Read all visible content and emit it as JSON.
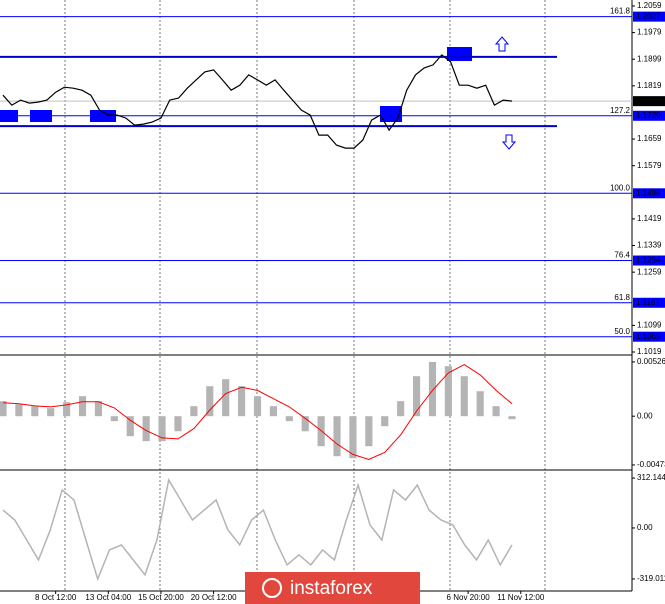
{
  "chart_data": [
    {
      "type": "line",
      "color": "#000000",
      "values": [
        1.1791,
        1.1761,
        1.1776,
        1.1767,
        1.177,
        1.1776,
        1.18,
        1.1815,
        1.1812,
        1.1806,
        1.1791,
        1.1746,
        1.1731,
        1.1731,
        1.1722,
        1.1701,
        1.1704,
        1.171,
        1.1722,
        1.1776,
        1.1782,
        1.1812,
        1.1837,
        1.1861,
        1.1867,
        1.1837,
        1.1806,
        1.1821,
        1.1852,
        1.1837,
        1.1821,
        1.1837,
        1.1806,
        1.1776,
        1.1746,
        1.1731,
        1.1671,
        1.1671,
        1.1641,
        1.1632,
        1.1632,
        1.1656,
        1.1716,
        1.1731,
        1.1686,
        1.1722,
        1.1806,
        1.1852,
        1.1873,
        1.1882,
        1.1912,
        1.1891,
        1.1821,
        1.1821,
        1.1812,
        1.1821,
        1.1761,
        1.1776,
        1.1773
      ],
      "ylim": [
        1.101,
        1.2077
      ],
      "yticks": [
        1.2059,
        1.1979,
        1.1899,
        1.1819,
        1.1659,
        1.1579,
        1.1419,
        1.1339,
        1.1259,
        1.1099,
        1.1019
      ],
      "xticks": [
        {
          "value": 6,
          "label": "8 Oct 12:00"
        },
        {
          "value": 12,
          "label": "13 Oct 04:00"
        },
        {
          "value": 18,
          "label": "15 Oct 20:00"
        },
        {
          "value": 24,
          "label": "20 Oct 12:00"
        },
        {
          "value": 53,
          "label": "6 Nov 20:00"
        },
        {
          "value": 59,
          "label": "11 Nov 12:00"
        }
      ],
      "levels": [
        {
          "name": "161.8",
          "value": 1.2027
        },
        {
          "name": "127.2",
          "value": 1.1729
        },
        {
          "name": "100.0",
          "value": 1.1496
        },
        {
          "name": "76.4",
          "value": 1.1294
        },
        {
          "name": "61.8",
          "value": 1.1167
        },
        {
          "name": "50.0",
          "value": 1.1065
        }
      ],
      "zones": [
        1.1906,
        1.1698
      ],
      "current_price": 1.1773
    },
    {
      "type": "macd",
      "color": "#b4b4b4",
      "signal_color": "#ff0000",
      "values": [
        0.00146,
        0.00116,
        0.00097,
        0.00078,
        0.00136,
        0.00194,
        0.00146,
        -0.00048,
        -0.00194,
        -0.00242,
        -0.00242,
        -0.00146,
        0.00097,
        0.00291,
        0.00359,
        0.00291,
        0.00194,
        0.00097,
        -0.00048,
        -0.00146,
        -0.00291,
        -0.00388,
        -0.00407,
        -0.00291,
        -0.00097,
        0.00146,
        0.00388,
        0.00526,
        0.00485,
        0.00388,
        0.00242,
        0.00097,
        -0.00029
      ],
      "signal": [
        0.0013,
        0.0012,
        0.001,
        0.0009,
        0.0011,
        0.0014,
        0.0014,
        0.0008,
        -0.0004,
        -0.0014,
        -0.0021,
        -0.0022,
        -0.0012,
        0.0006,
        0.0022,
        0.0028,
        0.0025,
        0.0017,
        0.0009,
        -0.0002,
        -0.0014,
        -0.0027,
        -0.0037,
        -0.0042,
        -0.0035,
        -0.0018,
        0.0005,
        0.0025,
        0.0042,
        0.005,
        0.004,
        0.0025,
        0.0012
      ],
      "ylim": [
        -0.00512,
        0.00574
      ],
      "yticks": [
        0.00526,
        {
          "value": 0,
          "label": "0.00"
        },
        -0.00473
      ]
    },
    {
      "type": "line",
      "color": "#b4b4b4",
      "values": [
        112,
        50,
        -75,
        -200,
        -12,
        238,
        175,
        -75,
        -319,
        -137,
        -106,
        -200,
        -293,
        -75,
        300,
        175,
        50,
        112,
        175,
        -12,
        -106,
        50,
        112,
        -75,
        -231,
        -168,
        -231,
        -137,
        -200,
        50,
        268,
        19,
        -75,
        238,
        175,
        268,
        112,
        50,
        19,
        -106,
        -200,
        -75,
        -231,
        -106
      ],
      "ylim": [
        -388,
        350
      ],
      "yticks": [
        312.1442,
        {
          "value": 0,
          "label": "0.00"
        },
        -319.011
      ]
    }
  ],
  "watermark": "instaforex"
}
